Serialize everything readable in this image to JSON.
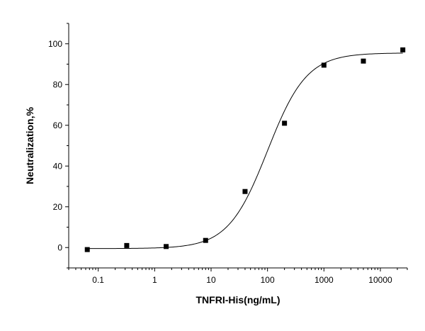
{
  "chart_data": {
    "type": "scatter",
    "title": "",
    "xlabel": "TNFRI-His(ng/mL)",
    "ylabel": "Neutralization,%",
    "x_scale": "log",
    "xlim": [
      0.03,
      30000
    ],
    "ylim": [
      -10,
      110
    ],
    "x_ticks": [
      {
        "value": 0.1,
        "label": "0.1"
      },
      {
        "value": 1,
        "label": "1"
      },
      {
        "value": 10,
        "label": "10"
      },
      {
        "value": 100,
        "label": "100"
      },
      {
        "value": 1000,
        "label": "1000"
      },
      {
        "value": 10000,
        "label": "10000"
      }
    ],
    "y_ticks": [
      {
        "value": 0,
        "label": "0"
      },
      {
        "value": 20,
        "label": "20"
      },
      {
        "value": 40,
        "label": "40"
      },
      {
        "value": 60,
        "label": "60"
      },
      {
        "value": 80,
        "label": "80"
      },
      {
        "value": 100,
        "label": "100"
      }
    ],
    "grid": false,
    "legend": "none",
    "series": [
      {
        "marker": "square",
        "color": "#000000",
        "points": [
          {
            "x": 0.064,
            "y": -1
          },
          {
            "x": 0.32,
            "y": 1
          },
          {
            "x": 1.6,
            "y": 0.5
          },
          {
            "x": 8,
            "y": 3.5
          },
          {
            "x": 40,
            "y": 27.5
          },
          {
            "x": 200,
            "y": 61
          },
          {
            "x": 1000,
            "y": 89.5
          },
          {
            "x": 5000,
            "y": 91.5
          },
          {
            "x": 25000,
            "y": 97
          }
        ]
      }
    ],
    "fit_curve": {
      "model": "4PL",
      "bottom": -0.5,
      "top": 95.5,
      "ec50": 100,
      "hill": 1.25,
      "color": "#000000"
    }
  }
}
